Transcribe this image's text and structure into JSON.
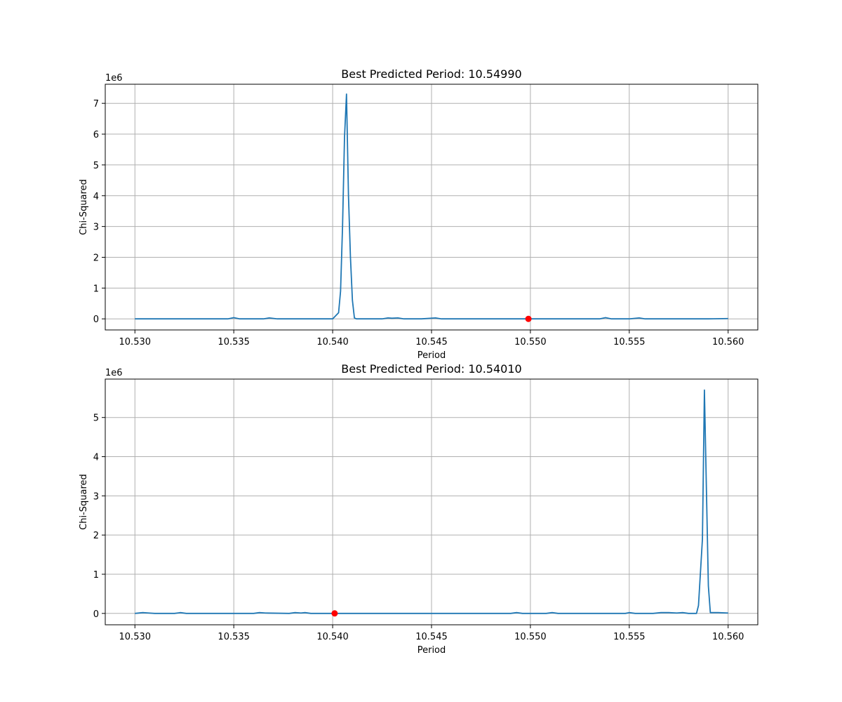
{
  "chart_data": [
    {
      "type": "line",
      "title": "Best Predicted Period: 10.54990",
      "xlabel": "Period",
      "ylabel": "Chi-Squared",
      "y_offset_label": "1e6",
      "xlim": [
        10.5285,
        10.5615
      ],
      "ylim": [
        -0.36,
        7.62
      ],
      "x_ticks": [
        10.53,
        10.535,
        10.54,
        10.545,
        10.55,
        10.555,
        10.56
      ],
      "x_tick_labels": [
        "10.530",
        "10.535",
        "10.540",
        "10.545",
        "10.550",
        "10.555",
        "10.560"
      ],
      "y_ticks": [
        0,
        1,
        2,
        3,
        4,
        5,
        6,
        7
      ],
      "y_tick_labels": [
        "0",
        "1",
        "2",
        "3",
        "4",
        "5",
        "6",
        "7"
      ],
      "grid": true,
      "line_color": "#1f77b4",
      "marker_color": "#ff0000",
      "series": [
        {
          "x": [
            10.53,
            10.533,
            10.5347,
            10.535,
            10.5353,
            10.5365,
            10.5368,
            10.5372,
            10.539,
            10.54,
            10.5403,
            10.5404,
            10.5405,
            10.5406,
            10.5407,
            10.5408,
            10.5409,
            10.541,
            10.5411,
            10.5412,
            10.5415,
            10.5425,
            10.5428,
            10.543,
            10.5433,
            10.5436,
            10.5445,
            10.5452,
            10.5455,
            10.547,
            10.549,
            10.5499,
            10.551,
            10.5525,
            10.5535,
            10.5538,
            10.5541,
            10.555,
            10.5555,
            10.5558,
            10.557,
            10.559,
            10.56
          ],
          "y": [
            0,
            0,
            0,
            0.04,
            0,
            0,
            0.03,
            0,
            0,
            0,
            0.2,
            0.9,
            3.0,
            5.9,
            7.3,
            4.0,
            2.0,
            0.6,
            0.03,
            0,
            0,
            0,
            0.03,
            0.02,
            0.03,
            0,
            0,
            0.03,
            0,
            0,
            0,
            0,
            0,
            0,
            0,
            0.04,
            0,
            0,
            0.03,
            0,
            0,
            0,
            0.01
          ]
        }
      ],
      "best_point": {
        "x": 10.5499,
        "y": 0
      }
    },
    {
      "type": "line",
      "title": "Best Predicted Period: 10.54010",
      "xlabel": "Period",
      "ylabel": "Chi-Squared",
      "y_offset_label": "1e6",
      "xlim": [
        10.5285,
        10.5615
      ],
      "ylim": [
        -0.29,
        5.98
      ],
      "x_ticks": [
        10.53,
        10.535,
        10.54,
        10.545,
        10.55,
        10.555,
        10.56
      ],
      "x_tick_labels": [
        "10.530",
        "10.535",
        "10.540",
        "10.545",
        "10.550",
        "10.555",
        "10.560"
      ],
      "y_ticks": [
        0,
        1,
        2,
        3,
        4,
        5
      ],
      "y_tick_labels": [
        "0",
        "1",
        "2",
        "3",
        "4",
        "5"
      ],
      "grid": true,
      "line_color": "#1f77b4",
      "marker_color": "#ff0000",
      "series": [
        {
          "x": [
            10.53,
            10.5304,
            10.5307,
            10.531,
            10.532,
            10.5323,
            10.5326,
            10.536,
            10.5363,
            10.5366,
            10.5378,
            10.5381,
            10.5384,
            10.5386,
            10.5389,
            10.54,
            10.549,
            10.5493,
            10.5496,
            10.5508,
            10.5511,
            10.5514,
            10.5548,
            10.555,
            10.5553,
            10.5562,
            10.5566,
            10.557,
            10.5574,
            10.5577,
            10.558,
            10.5584,
            10.5585,
            10.5587,
            10.5588,
            10.5589,
            10.559,
            10.5591,
            10.5592,
            10.5595,
            10.56
          ],
          "y": [
            0,
            0.02,
            0.01,
            0,
            0,
            0.02,
            0,
            0,
            0.02,
            0.01,
            0,
            0.02,
            0.01,
            0.02,
            0,
            0,
            0,
            0.02,
            0,
            0,
            0.02,
            0,
            0,
            0.02,
            0,
            0,
            0.02,
            0.02,
            0.01,
            0.02,
            0,
            0,
            0.2,
            1.9,
            5.7,
            3.2,
            0.7,
            0.02,
            0.02,
            0.02,
            0.01
          ]
        }
      ],
      "best_point": {
        "x": 10.5401,
        "y": 0
      }
    }
  ]
}
